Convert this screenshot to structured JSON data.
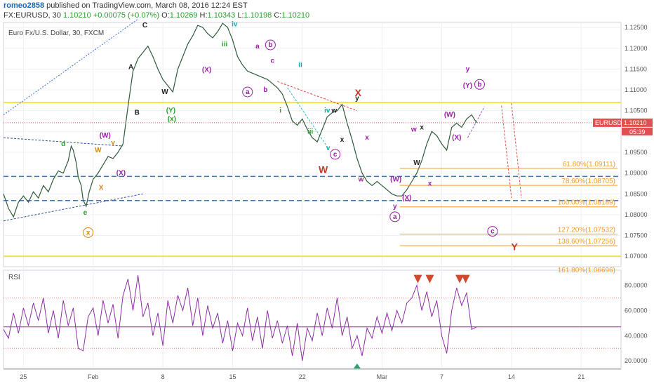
{
  "header": {
    "author": "romeo2858",
    "published_text": "published on TradingView.com, March 08, 2016 12:24 EST",
    "symbol": "FX:EURUSD, 30",
    "last": "1.10210",
    "change": "+0.00075 (+0.07%)",
    "o_label": "O:",
    "o_value": "1.10269",
    "h_label": "H:",
    "h_value": "1.10343",
    "l_label": "L:",
    "l_value": "1.10198",
    "c_label": "C:",
    "c_value": "1.10210"
  },
  "colors": {
    "price_line": "#2f5a39",
    "rsi_line": "#8b2fa3",
    "fib": "#f39c2d",
    "blue_dash": "#3a6fd8",
    "yellow": "#f2e24a",
    "purple": "#9b1fa8",
    "green": "#2aa02a",
    "red": "#c0392b",
    "orange": "#d4861b",
    "teal": "#1aa6a6"
  },
  "chart_data": [
    {
      "type": "line",
      "title": "Euro Fx/U.S. Dollar, 30, FXCM",
      "symbol_tag": "EURUSD",
      "last_price": "1.10210",
      "countdown": "05:39",
      "ylim": [
        1.0675,
        1.1262
      ],
      "y_ticks": [
        "1.12500",
        "1.12000",
        "1.11500",
        "1.11000",
        "1.10500",
        "1.10000",
        "1.09500",
        "1.09000",
        "1.08500",
        "1.08000",
        "1.07500",
        "1.07000"
      ],
      "x_ticks": [
        "25",
        "Feb",
        "8",
        "15",
        "22",
        "Mar",
        "7",
        "14",
        "21"
      ],
      "x_tick_days": [
        -6,
        1,
        8,
        15,
        22,
        30,
        36,
        43,
        50
      ],
      "x_range_days": [
        -8,
        54
      ],
      "price_path": [
        [
          -8,
          1.085
        ],
        [
          -7.5,
          1.0815
        ],
        [
          -7,
          1.0795
        ],
        [
          -6.5,
          1.083
        ],
        [
          -6,
          1.0845
        ],
        [
          -5.5,
          1.083
        ],
        [
          -5,
          1.0855
        ],
        [
          -4.5,
          1.084
        ],
        [
          -4,
          1.087
        ],
        [
          -3.5,
          1.0855
        ],
        [
          -3,
          1.0885
        ],
        [
          -2.5,
          1.0905
        ],
        [
          -2,
          1.09
        ],
        [
          -1.5,
          1.093
        ],
        [
          -1.2,
          1.0965
        ],
        [
          -1,
          1.0955
        ],
        [
          -0.7,
          1.0925
        ],
        [
          -0.5,
          1.089
        ],
        [
          -0.2,
          1.087
        ],
        [
          0,
          1.0835
        ],
        [
          0.3,
          1.082
        ],
        [
          0.6,
          1.0855
        ],
        [
          1,
          1.0885
        ],
        [
          1.5,
          1.09
        ],
        [
          2,
          1.092
        ],
        [
          2.5,
          1.094
        ],
        [
          3,
          1.0935
        ],
        [
          3.5,
          1.095
        ],
        [
          4,
          1.097
        ],
        [
          4.5,
          1.106
        ],
        [
          5,
          1.1145
        ],
        [
          5.5,
          1.1175
        ],
        [
          6,
          1.119
        ],
        [
          6.5,
          1.1205
        ],
        [
          7,
          1.118
        ],
        [
          7.5,
          1.115
        ],
        [
          8,
          1.1125
        ],
        [
          8.5,
          1.111
        ],
        [
          9,
          1.1095
        ],
        [
          9.5,
          1.115
        ],
        [
          10,
          1.118
        ],
        [
          10.5,
          1.121
        ],
        [
          11,
          1.123
        ],
        [
          11.5,
          1.1255
        ],
        [
          12,
          1.125
        ],
        [
          12.5,
          1.1235
        ],
        [
          13,
          1.1225
        ],
        [
          13.5,
          1.124
        ],
        [
          14,
          1.126
        ],
        [
          14.5,
          1.125
        ],
        [
          15,
          1.122
        ],
        [
          15.5,
          1.118
        ],
        [
          16,
          1.116
        ],
        [
          16.5,
          1.1145
        ],
        [
          17,
          1.114
        ],
        [
          17.5,
          1.1135
        ],
        [
          18,
          1.113
        ],
        [
          18.5,
          1.1125
        ],
        [
          19,
          1.1115
        ],
        [
          19.5,
          1.1105
        ],
        [
          20,
          1.109
        ],
        [
          20.5,
          1.106
        ],
        [
          21,
          1.1025
        ],
        [
          21.5,
          1.1015
        ],
        [
          22,
          1.103
        ],
        [
          22.5,
          1.1005
        ],
        [
          23,
          1.0985
        ],
        [
          23.5,
          1.0975
        ],
        [
          24,
          1.1005
        ],
        [
          24.5,
          1.1035
        ],
        [
          25,
          1.1045
        ],
        [
          25.5,
          1.105
        ],
        [
          26,
          1.1065
        ],
        [
          26.5,
          1.102
        ],
        [
          27,
          1.098
        ],
        [
          27.5,
          1.0935
        ],
        [
          28,
          1.09
        ],
        [
          28.5,
          1.088
        ],
        [
          29,
          1.087
        ],
        [
          29.5,
          1.088
        ],
        [
          30,
          1.087
        ],
        [
          30.5,
          1.086
        ],
        [
          31,
          1.085
        ],
        [
          31.5,
          1.0845
        ],
        [
          32,
          1.0845
        ],
        [
          32.5,
          1.086
        ],
        [
          33,
          1.088
        ],
        [
          33.5,
          1.09
        ],
        [
          34,
          1.093
        ],
        [
          34.5,
          1.097
        ],
        [
          35,
          1.1
        ],
        [
          35.5,
          1.099
        ],
        [
          36,
          1.097
        ],
        [
          36.5,
          1.0955
        ],
        [
          37,
          1.101
        ],
        [
          37.5,
          1.102
        ],
        [
          38,
          1.101
        ],
        [
          38.5,
          1.103
        ],
        [
          39,
          1.104
        ],
        [
          39.5,
          1.1021
        ]
      ],
      "horizontal_lines": [
        {
          "y": 1.10695,
          "style": "yellow-solid"
        },
        {
          "y": 1.1021,
          "style": "red-dotted"
        },
        {
          "y": 1.0892,
          "style": "blue-dashed"
        },
        {
          "y": 1.0834,
          "style": "blue-dashed"
        },
        {
          "y": 1.07,
          "style": "yellow-solid"
        }
      ],
      "fib_levels": [
        {
          "label": "61.80%(1.09111)",
          "y": 1.09111
        },
        {
          "label": "78.60%(1.08705)",
          "y": 1.08705
        },
        {
          "label": "100.00%(1.08189)",
          "y": 1.08189
        },
        {
          "label": "127.20%(1.07532)",
          "y": 1.07532
        },
        {
          "label": "138.60%(1.07256)",
          "y": 1.07256
        },
        {
          "label": "161.80%(1.06696)",
          "y": 1.06696
        }
      ],
      "wave_labels": [
        {
          "text": "d",
          "x": -2,
          "y": 1.0965,
          "color": "green"
        },
        {
          "text": "e",
          "x": 0.2,
          "y": 1.08,
          "color": "green"
        },
        {
          "text": "x",
          "x": 0.5,
          "y": 1.0752,
          "color": "orange",
          "circled": true
        },
        {
          "text": "(W)",
          "x": 2.2,
          "y": 1.0985,
          "color": "purple"
        },
        {
          "text": "W",
          "x": 1.5,
          "y": 1.095,
          "color": "orange"
        },
        {
          "text": "Y",
          "x": 3,
          "y": 1.0965,
          "color": "orange"
        },
        {
          "text": "(X)",
          "x": 3.8,
          "y": 1.0895,
          "color": "purple"
        },
        {
          "text": "X",
          "x": 1.8,
          "y": 1.086,
          "color": "orange"
        },
        {
          "text": "A",
          "x": 4.8,
          "y": 1.115,
          "color": "dark"
        },
        {
          "text": "B",
          "x": 5.4,
          "y": 1.104,
          "color": "dark"
        },
        {
          "text": "C",
          "x": 6.2,
          "y": 1.125,
          "color": "dark"
        },
        {
          "text": "W",
          "x": 8.2,
          "y": 1.109,
          "color": "dark"
        },
        {
          "text": "(Y)",
          "x": 8.8,
          "y": 1.1045,
          "color": "green"
        },
        {
          "text": "(x)",
          "x": 8.9,
          "y": 1.1025,
          "color": "green"
        },
        {
          "text": "(X)",
          "x": 12.4,
          "y": 1.1143,
          "color": "purple"
        },
        {
          "text": "iii",
          "x": 14.2,
          "y": 1.1205,
          "color": "green"
        },
        {
          "text": "iv",
          "x": 15.2,
          "y": 1.1253,
          "color": "teal"
        },
        {
          "text": "a",
          "x": 17.5,
          "y": 1.12,
          "color": "purple"
        },
        {
          "text": "b",
          "x": 18.8,
          "y": 1.1203,
          "color": "purple",
          "circled": true
        },
        {
          "text": "c",
          "x": 19,
          "y": 1.1165,
          "color": "purple"
        },
        {
          "text": "a",
          "x": 16.5,
          "y": 1.109,
          "color": "purple",
          "circled": true
        },
        {
          "text": "b",
          "x": 18.3,
          "y": 1.1095,
          "color": "purple"
        },
        {
          "text": "ii",
          "x": 21.8,
          "y": 1.1155,
          "color": "teal"
        },
        {
          "text": "i",
          "x": 19.8,
          "y": 1.1045,
          "color": "green"
        },
        {
          "text": "iii",
          "x": 22.8,
          "y": 1.0995,
          "color": "green"
        },
        {
          "text": "iv",
          "x": 24.5,
          "y": 1.1045,
          "color": "teal"
        },
        {
          "text": "w",
          "x": 25.2,
          "y": 1.1045,
          "color": "dark"
        },
        {
          "text": "x",
          "x": 26,
          "y": 1.0975,
          "color": "dark"
        },
        {
          "text": "v",
          "x": 24.6,
          "y": 1.0955,
          "color": "teal"
        },
        {
          "text": "c",
          "x": 25.3,
          "y": 1.094,
          "color": "purple",
          "circled": true
        },
        {
          "text": "W",
          "x": 24.1,
          "y": 1.0905,
          "color": "red"
        },
        {
          "text": "X",
          "x": 27.6,
          "y": 1.109,
          "color": "red"
        },
        {
          "text": "y",
          "x": 27.5,
          "y": 1.1075,
          "color": "dark"
        },
        {
          "text": "x",
          "x": 28.5,
          "y": 1.098,
          "color": "purple"
        },
        {
          "text": "w",
          "x": 27.9,
          "y": 1.088,
          "color": "purple"
        },
        {
          "text": "(W)",
          "x": 31.4,
          "y": 1.088,
          "color": "purple"
        },
        {
          "text": "(X)",
          "x": 32.5,
          "y": 1.0835,
          "color": "purple"
        },
        {
          "text": "y",
          "x": 31.3,
          "y": 1.0815,
          "color": "purple"
        },
        {
          "text": "a",
          "x": 31.3,
          "y": 1.079,
          "color": "purple",
          "circled": true
        },
        {
          "text": "w",
          "x": 33.2,
          "y": 1.1,
          "color": "purple"
        },
        {
          "text": "x",
          "x": 34,
          "y": 1.1005,
          "color": "dark"
        },
        {
          "text": "W",
          "x": 33.5,
          "y": 1.092,
          "color": "dark"
        },
        {
          "text": "x",
          "x": 34.8,
          "y": 1.087,
          "color": "purple"
        },
        {
          "text": "(W)",
          "x": 36.8,
          "y": 1.1035,
          "color": "purple"
        },
        {
          "text": "(X)",
          "x": 37.5,
          "y": 1.098,
          "color": "purple"
        },
        {
          "text": "y",
          "x": 38.6,
          "y": 1.1145,
          "color": "purple"
        },
        {
          "text": "(Y)",
          "x": 38.6,
          "y": 1.1105,
          "color": "purple"
        },
        {
          "text": "b",
          "x": 39.8,
          "y": 1.1108,
          "color": "purple",
          "circled": true
        },
        {
          "text": "c",
          "x": 41.1,
          "y": 1.0755,
          "color": "purple",
          "circled": true
        },
        {
          "text": "Y",
          "x": 43.3,
          "y": 1.072,
          "color": "red"
        }
      ]
    },
    {
      "type": "line",
      "title": "RSI",
      "ylim": [
        14,
        92
      ],
      "y_ticks": [
        "80.0000",
        "60.0000",
        "40.0000",
        "20.0000"
      ],
      "bands": [
        70,
        30
      ],
      "current_level": 47,
      "rsi_path": [
        [
          -8,
          45
        ],
        [
          -7.5,
          38
        ],
        [
          -7,
          58
        ],
        [
          -6.5,
          42
        ],
        [
          -6,
          62
        ],
        [
          -5.5,
          48
        ],
        [
          -5,
          66
        ],
        [
          -4.5,
          52
        ],
        [
          -4,
          70
        ],
        [
          -3.5,
          42
        ],
        [
          -3,
          60
        ],
        [
          -2.5,
          38
        ],
        [
          -2,
          68
        ],
        [
          -1.5,
          48
        ],
        [
          -1,
          62
        ],
        [
          -0.5,
          30
        ],
        [
          0,
          28
        ],
        [
          0.5,
          55
        ],
        [
          1,
          62
        ],
        [
          1.5,
          40
        ],
        [
          2,
          68
        ],
        [
          2.5,
          50
        ],
        [
          3,
          65
        ],
        [
          3.5,
          38
        ],
        [
          4,
          72
        ],
        [
          4.5,
          85
        ],
        [
          5,
          60
        ],
        [
          5.5,
          88
        ],
        [
          6,
          55
        ],
        [
          6.5,
          66
        ],
        [
          7,
          40
        ],
        [
          7.5,
          58
        ],
        [
          8,
          32
        ],
        [
          8.5,
          68
        ],
        [
          9,
          50
        ],
        [
          9.5,
          72
        ],
        [
          10,
          60
        ],
        [
          10.5,
          78
        ],
        [
          11,
          48
        ],
        [
          11.5,
          70
        ],
        [
          12,
          40
        ],
        [
          12.5,
          64
        ],
        [
          13,
          46
        ],
        [
          13.5,
          58
        ],
        [
          14,
          34
        ],
        [
          14.5,
          52
        ],
        [
          15,
          28
        ],
        [
          15.5,
          50
        ],
        [
          16,
          40
        ],
        [
          16.5,
          62
        ],
        [
          17,
          36
        ],
        [
          17.5,
          55
        ],
        [
          18,
          30
        ],
        [
          18.5,
          60
        ],
        [
          19,
          38
        ],
        [
          19.5,
          52
        ],
        [
          20,
          34
        ],
        [
          20.5,
          48
        ],
        [
          21,
          24
        ],
        [
          21.5,
          50
        ],
        [
          22,
          20
        ],
        [
          22.5,
          46
        ],
        [
          23,
          36
        ],
        [
          23.5,
          58
        ],
        [
          24,
          40
        ],
        [
          24.5,
          62
        ],
        [
          25,
          46
        ],
        [
          25.5,
          70
        ],
        [
          26,
          40
        ],
        [
          26.5,
          55
        ],
        [
          27,
          30
        ],
        [
          27.5,
          40
        ],
        [
          28,
          24
        ],
        [
          28.5,
          46
        ],
        [
          29,
          38
        ],
        [
          29.5,
          55
        ],
        [
          30,
          42
        ],
        [
          30.5,
          58
        ],
        [
          31,
          44
        ],
        [
          31.5,
          60
        ],
        [
          32,
          50
        ],
        [
          32.5,
          66
        ],
        [
          33,
          70
        ],
        [
          33.5,
          80
        ],
        [
          34,
          60
        ],
        [
          34.5,
          75
        ],
        [
          35,
          55
        ],
        [
          35.5,
          68
        ],
        [
          36,
          40
        ],
        [
          36.5,
          26
        ],
        [
          37,
          60
        ],
        [
          37.5,
          78
        ],
        [
          38,
          64
        ],
        [
          38.5,
          74
        ],
        [
          39,
          45
        ],
        [
          39.5,
          47
        ]
      ],
      "arrow_days": [
        33.6,
        34.8,
        37.8,
        38.4
      ]
    }
  ]
}
